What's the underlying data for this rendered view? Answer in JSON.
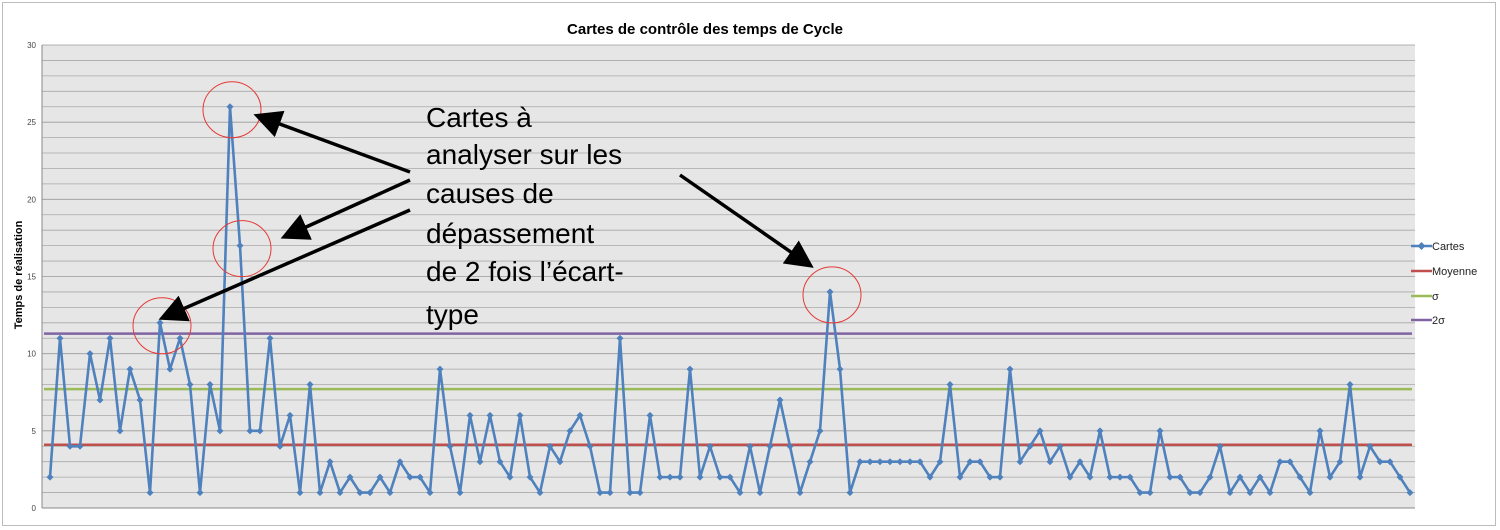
{
  "chart_data": {
    "type": "line",
    "title": "Cartes de contrôle  des temps de Cycle",
    "xlabel": "",
    "ylabel": "Temps de réalisation",
    "ylim": [
      0,
      30
    ],
    "yticks": [
      0,
      5,
      10,
      15,
      20,
      25,
      30
    ],
    "grid": true,
    "legend_position": "right",
    "series": [
      {
        "name": "Cartes",
        "color": "#4F81BD",
        "marker": "diamond",
        "values": [
          2,
          11,
          4,
          4,
          10,
          7,
          11,
          5,
          9,
          7,
          1,
          12,
          9,
          11,
          8,
          1,
          8,
          5,
          26,
          17,
          5,
          5,
          11,
          4,
          6,
          1,
          8,
          1,
          3,
          1,
          2,
          1,
          1,
          2,
          1,
          3,
          2,
          2,
          1,
          9,
          4,
          1,
          6,
          3,
          6,
          3,
          2,
          6,
          2,
          1,
          4,
          3,
          5,
          6,
          4,
          1,
          1,
          11,
          1,
          1,
          6,
          2,
          2,
          2,
          9,
          2,
          4,
          2,
          2,
          1,
          4,
          1,
          4,
          7,
          4,
          1,
          3,
          5,
          14,
          9,
          1,
          3,
          3,
          3,
          3,
          3,
          3,
          3,
          2,
          3,
          8,
          2,
          3,
          3,
          2,
          2,
          9,
          3,
          4,
          5,
          3,
          4,
          2,
          3,
          2,
          5,
          2,
          2,
          2,
          1,
          1,
          5,
          2,
          2,
          1,
          1,
          2,
          4,
          1,
          2,
          1,
          2,
          1,
          3,
          3,
          2,
          1,
          5,
          2,
          3,
          8,
          2,
          4,
          3,
          3,
          2,
          1
        ]
      },
      {
        "name": "Moyenne",
        "color": "#C0504D",
        "constant": 4.1
      },
      {
        "name": "σ",
        "color": "#9BBB59",
        "constant": 7.7
      },
      {
        "name": "2σ",
        "color": "#8064A2",
        "constant": 11.3
      }
    ],
    "annotation": {
      "lines": [
        "Cartes à",
        "analyser sur les",
        "causes de",
        "dépassement",
        "de 2 fois l’écart-",
        "type"
      ],
      "highlighted_indices": [
        18,
        19,
        11,
        78
      ]
    }
  }
}
